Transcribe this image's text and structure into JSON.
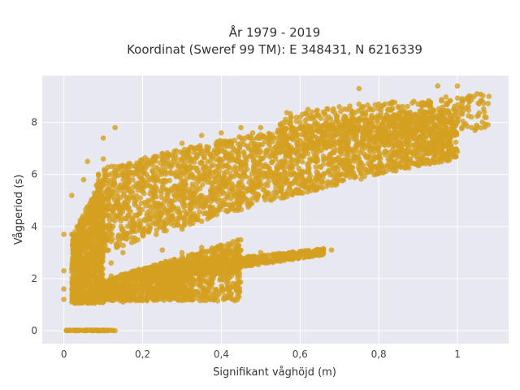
{
  "chart_data": {
    "type": "scatter",
    "title": "År 1979 - 2019",
    "subtitle": "Koordinat (Sweref 99 TM): E 348431, N 6216339",
    "xlabel": "Signifikant våghöjd (m)",
    "ylabel": "Vågperiod (s)",
    "xlim": [
      -0.055,
      1.13
    ],
    "ylim": [
      -0.5,
      9.8
    ],
    "x_ticks": [
      0,
      0.2,
      0.4,
      0.6,
      0.8,
      1
    ],
    "x_tick_labels": [
      "0",
      "0,2",
      "0,4",
      "0,6",
      "0,8",
      "1"
    ],
    "y_ticks": [
      0,
      2,
      4,
      6,
      8
    ],
    "y_tick_labels": [
      "0",
      "2",
      "4",
      "6",
      "8"
    ],
    "grid": true,
    "marker_color": "#D4A020",
    "plot_background": "#E8E8F0",
    "series": [
      {
        "values_note_points": [
          [
            0.01,
            0.0
          ],
          [
            0.03,
            0.0
          ],
          [
            0.05,
            0.0
          ],
          [
            0.07,
            0.0
          ],
          [
            0.09,
            0.0
          ],
          [
            0.11,
            0.0
          ],
          [
            0.13,
            0.0
          ],
          [
            0.0,
            1.2
          ],
          [
            0.0,
            1.6
          ],
          [
            0.0,
            2.3
          ],
          [
            0.0,
            3.7
          ],
          [
            0.02,
            3.7
          ],
          [
            0.03,
            1.1
          ],
          [
            0.06,
            1.1
          ],
          [
            0.1,
            1.1
          ],
          [
            0.15,
            1.1
          ],
          [
            0.2,
            1.15
          ],
          [
            0.25,
            1.3
          ],
          [
            0.02,
            1.6
          ],
          [
            0.05,
            2.0
          ],
          [
            0.08,
            2.4
          ],
          [
            0.12,
            2.6
          ],
          [
            0.15,
            3.0
          ],
          [
            0.1,
            3.5
          ],
          [
            0.02,
            5.2
          ],
          [
            0.05,
            5.8
          ],
          [
            0.06,
            6.5
          ],
          [
            0.1,
            6.6
          ],
          [
            0.1,
            7.4
          ],
          [
            0.14,
            6.2
          ],
          [
            0.2,
            5.5
          ],
          [
            0.2,
            6.3
          ],
          [
            0.25,
            6.8
          ],
          [
            0.3,
            7.2
          ],
          [
            0.35,
            7.5
          ],
          [
            0.4,
            7.6
          ],
          [
            0.45,
            7.8
          ],
          [
            0.5,
            7.8
          ],
          [
            0.55,
            7.9
          ],
          [
            0.6,
            8.2
          ],
          [
            0.62,
            8.5
          ],
          [
            0.7,
            8.6
          ],
          [
            0.75,
            8.7
          ],
          [
            0.8,
            8.7
          ],
          [
            0.85,
            8.6
          ],
          [
            0.9,
            8.7
          ],
          [
            0.95,
            9.4
          ],
          [
            1.0,
            9.4
          ],
          [
            1.05,
            9.1
          ],
          [
            1.08,
            9.0
          ],
          [
            0.75,
            9.3
          ],
          [
            0.99,
            8.5
          ],
          [
            0.98,
            8.2
          ],
          [
            0.97,
            8.0
          ],
          [
            0.25,
            4.5
          ],
          [
            0.3,
            4.0
          ],
          [
            0.35,
            4.2
          ],
          [
            0.4,
            5.0
          ],
          [
            0.45,
            5.2
          ],
          [
            0.5,
            5.6
          ],
          [
            0.55,
            5.9
          ],
          [
            0.6,
            6.1
          ],
          [
            0.65,
            6.3
          ],
          [
            0.7,
            6.5
          ],
          [
            0.75,
            6.6
          ],
          [
            0.8,
            6.7
          ],
          [
            0.85,
            7.0
          ],
          [
            0.9,
            7.2
          ],
          [
            0.17,
            4.0
          ],
          [
            0.2,
            3.7
          ],
          [
            0.3,
            3.9
          ],
          [
            0.22,
            4.3
          ],
          [
            0.12,
            2.1
          ],
          [
            0.2,
            2.2
          ],
          [
            0.25,
            2.3
          ],
          [
            0.3,
            2.4
          ],
          [
            0.35,
            2.5
          ],
          [
            0.4,
            2.6
          ],
          [
            0.45,
            2.7
          ],
          [
            0.5,
            2.8
          ],
          [
            0.55,
            2.9
          ],
          [
            0.6,
            3.0
          ],
          [
            0.65,
            3.05
          ],
          [
            0.68,
            3.1
          ],
          [
            0.25,
            3.1
          ],
          [
            0.3,
            3.0
          ],
          [
            0.35,
            3.2
          ],
          [
            0.28,
            2.7
          ],
          [
            0.42,
            2.9
          ],
          [
            0.5,
            3.0
          ],
          [
            0.15,
            1.5
          ],
          [
            0.2,
            1.6
          ],
          [
            0.25,
            1.8
          ],
          [
            0.3,
            1.9
          ],
          [
            0.35,
            2.1
          ],
          [
            0.4,
            2.2
          ],
          [
            0.26,
            1.65
          ],
          [
            0.17,
            1.4
          ],
          [
            0.08,
            2.9
          ],
          [
            0.06,
            4.5
          ],
          [
            0.04,
            4.0
          ],
          [
            0.1,
            5.0
          ],
          [
            0.13,
            7.8
          ],
          [
            0.33,
            7.0
          ],
          [
            0.48,
            7.6
          ],
          [
            0.63,
            8.4
          ],
          [
            0.78,
            8.1
          ],
          [
            0.93,
            8.4
          ],
          [
            0.5,
            6.6
          ],
          [
            0.56,
            6.1
          ],
          [
            0.44,
            6.5
          ],
          [
            0.37,
            6.0
          ],
          [
            0.62,
            6.8
          ],
          [
            0.72,
            7.2
          ],
          [
            0.78,
            6.1
          ],
          [
            0.83,
            6.3
          ],
          [
            0.88,
            6.6
          ],
          [
            0.93,
            7.5
          ],
          [
            0.96,
            7.4
          ],
          [
            1.03,
            8.8
          ],
          [
            0.04,
            3.0
          ],
          [
            0.07,
            4.2
          ],
          [
            0.09,
            5.6
          ],
          [
            0.11,
            4.8
          ],
          [
            0.16,
            5.8
          ],
          [
            0.18,
            4.9
          ]
        ]
      }
    ]
  }
}
